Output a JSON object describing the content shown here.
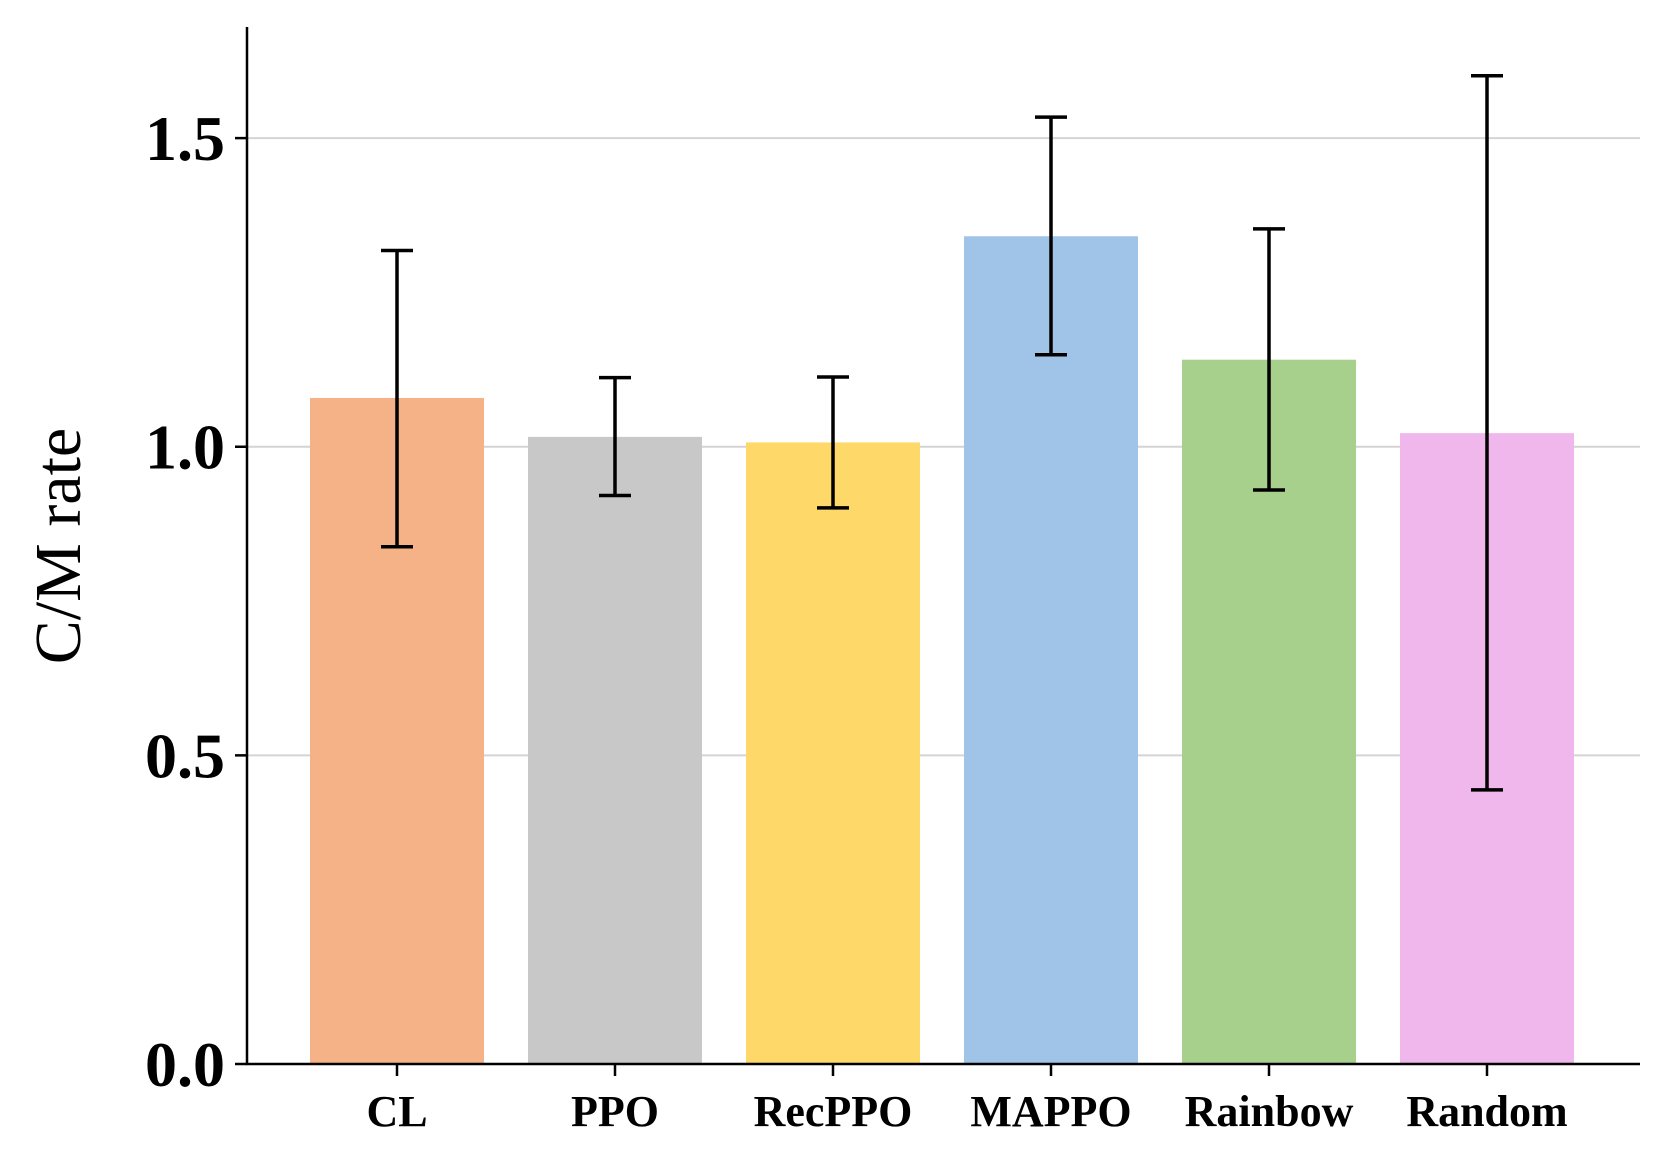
{
  "chart_data": {
    "type": "bar",
    "title": "",
    "xlabel": "",
    "ylabel": "C/M rate",
    "ylim": [
      0,
      1.68
    ],
    "yticks": [
      0.0,
      0.5,
      1.0,
      1.5
    ],
    "ytick_labels": [
      "0.0",
      "0.5",
      "1.0",
      "1.5"
    ],
    "grid": "horizontal",
    "categories": [
      "CL",
      "PPO",
      "RecPPO",
      "MAPPO",
      "Rainbow",
      "Random"
    ],
    "values": [
      1.079,
      1.016,
      1.007,
      1.341,
      1.141,
      1.022
    ],
    "error_low": [
      0.838,
      0.921,
      0.901,
      1.149,
      0.93,
      0.444
    ],
    "error_high": [
      1.318,
      1.112,
      1.113,
      1.534,
      1.353,
      1.601
    ],
    "colors": [
      "#f4b286",
      "#c8c8c8",
      "#fed96a",
      "#9fc4e7",
      "#a7d08c",
      "#efb7eb"
    ],
    "error_color": "#000000",
    "grid_color": "#d4d4d4"
  }
}
